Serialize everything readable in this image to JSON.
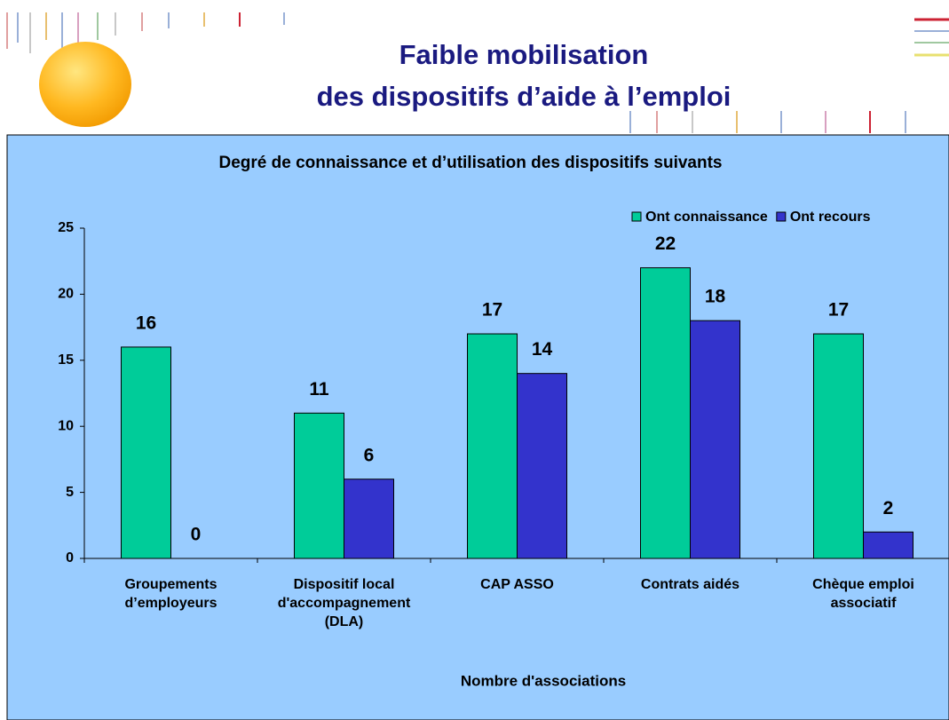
{
  "slide_title": [
    "Faible mobilisation",
    "des dispositifs d’aide à l’emploi"
  ],
  "chart_data": {
    "type": "bar",
    "title": "Degré de connaissance et d’utilisation des dispositifs suivants",
    "xlabel": "Nombre d'associations",
    "categories": [
      "Groupements d’employeurs",
      "Dispositif local d'accompagnement (DLA)",
      "CAP ASSO",
      "Contrats aidés",
      "Chèque emploi associatif"
    ],
    "series": [
      {
        "name": "Ont connaissance",
        "color": "#00cc99",
        "values": [
          16,
          11,
          17,
          22,
          17
        ]
      },
      {
        "name": "Ont recours",
        "color": "#3333cc",
        "values": [
          0,
          6,
          14,
          18,
          2
        ]
      }
    ],
    "ylim": [
      0,
      25
    ],
    "yticks": [
      0,
      5,
      10,
      15,
      20,
      25
    ],
    "grid": false,
    "legend": "top-right"
  }
}
